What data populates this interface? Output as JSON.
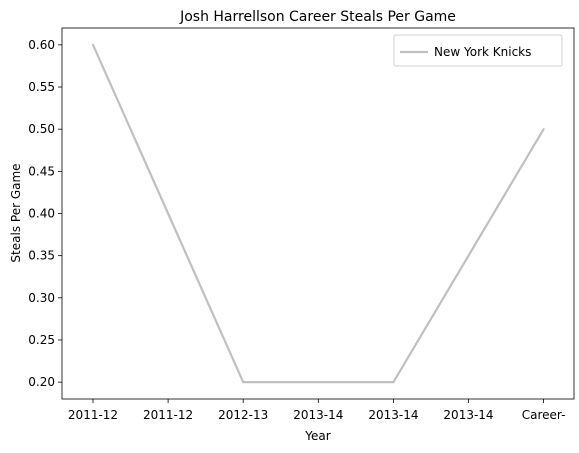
{
  "chart_data": {
    "type": "line",
    "title": "Josh Harrellson Career Steals Per Game",
    "xlabel": "Year",
    "ylabel": "Steals Per Game",
    "categories": [
      "2011-12",
      "2011-12",
      "2012-13",
      "2013-14",
      "2013-14",
      "2013-14",
      "Career-"
    ],
    "series": [
      {
        "name": "New York Knicks",
        "values": [
          0.6,
          0.4,
          0.2,
          0.2,
          0.2,
          0.35,
          0.5
        ],
        "color": "#c0c0c0"
      }
    ],
    "ylim": [
      0.18,
      0.62
    ],
    "yticks": [
      "0.20",
      "0.25",
      "0.30",
      "0.35",
      "0.40",
      "0.45",
      "0.50",
      "0.55",
      "0.60"
    ],
    "grid": false,
    "legend_position": "top-right"
  }
}
